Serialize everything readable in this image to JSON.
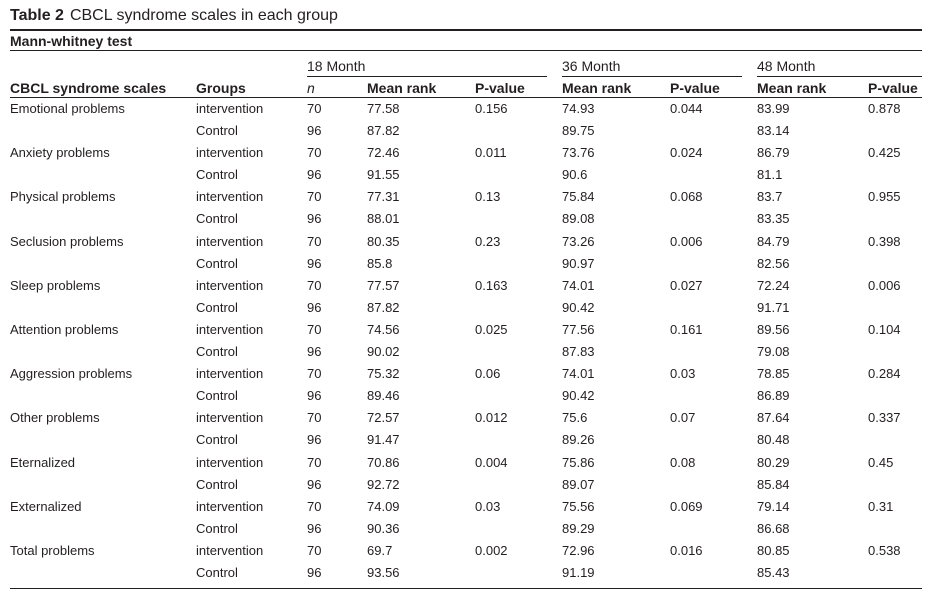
{
  "caption": {
    "label": "Table 2",
    "title": "CBCL syndrome scales in each group"
  },
  "subtitle": "Mann-whitney test",
  "group_headers": {
    "m18": "18 Month",
    "m36": "36 Month",
    "m48": "48 Month"
  },
  "columns": {
    "scale": "CBCL syndrome scales",
    "groups": "Groups",
    "n": "n",
    "mean18": "Mean rank",
    "p18": "P-value",
    "mean36": "Mean rank",
    "p36": "P-value",
    "mean48": "Mean rank",
    "p48": "P-value"
  },
  "rows": [
    {
      "scale": "Emotional problems",
      "group": "intervention",
      "n": "70",
      "m18": "77.58",
      "p18": "0.156",
      "m36": "74.93",
      "p36": "0.044",
      "m48": "83.99",
      "p48": "0.878"
    },
    {
      "scale": "",
      "group": "Control",
      "n": "96",
      "m18": "87.82",
      "p18": "",
      "m36": "89.75",
      "p36": "",
      "m48": "83.14",
      "p48": ""
    },
    {
      "scale": "Anxiety problems",
      "group": "intervention",
      "n": "70",
      "m18": "72.46",
      "p18": "0.011",
      "m36": "73.76",
      "p36": "0.024",
      "m48": "86.79",
      "p48": "0.425"
    },
    {
      "scale": "",
      "group": "Control",
      "n": "96",
      "m18": "91.55",
      "p18": "",
      "m36": "90.6",
      "p36": "",
      "m48": "81.1",
      "p48": ""
    },
    {
      "scale": "Physical problems",
      "group": "intervention",
      "n": "70",
      "m18": "77.31",
      "p18": "0.13",
      "m36": "75.84",
      "p36": "0.068",
      "m48": "83.7",
      "p48": "0.955"
    },
    {
      "scale": "",
      "group": "Control",
      "n": "96",
      "m18": "88.01",
      "p18": "",
      "m36": "89.08",
      "p36": "",
      "m48": "83.35",
      "p48": ""
    },
    {
      "scale": "Seclusion problems",
      "group": "intervention",
      "n": "70",
      "m18": "80.35",
      "p18": "0.23",
      "m36": "73.26",
      "p36": "0.006",
      "m48": "84.79",
      "p48": "0.398"
    },
    {
      "scale": "",
      "group": "Control",
      "n": "96",
      "m18": "85.8",
      "p18": "",
      "m36": "90.97",
      "p36": "",
      "m48": "82.56",
      "p48": ""
    },
    {
      "scale": "Sleep problems",
      "group": "intervention",
      "n": "70",
      "m18": "77.57",
      "p18": "0.163",
      "m36": "74.01",
      "p36": "0.027",
      "m48": "72.24",
      "p48": "0.006"
    },
    {
      "scale": "",
      "group": "Control",
      "n": "96",
      "m18": "87.82",
      "p18": "",
      "m36": "90.42",
      "p36": "",
      "m48": "91.71",
      "p48": ""
    },
    {
      "scale": "Attention problems",
      "group": "intervention",
      "n": "70",
      "m18": "74.56",
      "p18": "0.025",
      "m36": "77.56",
      "p36": "0.161",
      "m48": "89.56",
      "p48": "0.104"
    },
    {
      "scale": "",
      "group": "Control",
      "n": "96",
      "m18": "90.02",
      "p18": "",
      "m36": "87.83",
      "p36": "",
      "m48": "79.08",
      "p48": ""
    },
    {
      "scale": "Aggression problems",
      "group": "intervention",
      "n": "70",
      "m18": "75.32",
      "p18": "0.06",
      "m36": "74.01",
      "p36": "0.03",
      "m48": "78.85",
      "p48": "0.284"
    },
    {
      "scale": "",
      "group": "Control",
      "n": "96",
      "m18": "89.46",
      "p18": "",
      "m36": "90.42",
      "p36": "",
      "m48": "86.89",
      "p48": ""
    },
    {
      "scale": "Other problems",
      "group": "intervention",
      "n": "70",
      "m18": "72.57",
      "p18": "0.012",
      "m36": "75.6",
      "p36": "0.07",
      "m48": "87.64",
      "p48": "0.337"
    },
    {
      "scale": "",
      "group": "Control",
      "n": "96",
      "m18": "91.47",
      "p18": "",
      "m36": "89.26",
      "p36": "",
      "m48": "80.48",
      "p48": ""
    },
    {
      "scale": "Eternalized",
      "group": "intervention",
      "n": "70",
      "m18": "70.86",
      "p18": "0.004",
      "m36": "75.86",
      "p36": "0.08",
      "m48": "80.29",
      "p48": "0.45"
    },
    {
      "scale": "",
      "group": "Control",
      "n": "96",
      "m18": "92.72",
      "p18": "",
      "m36": "89.07",
      "p36": "",
      "m48": "85.84",
      "p48": ""
    },
    {
      "scale": "Externalized",
      "group": "intervention",
      "n": "70",
      "m18": "74.09",
      "p18": "0.03",
      "m36": "75.56",
      "p36": "0.069",
      "m48": "79.14",
      "p48": "0.31"
    },
    {
      "scale": "",
      "group": "Control",
      "n": "96",
      "m18": "90.36",
      "p18": "",
      "m36": "89.29",
      "p36": "",
      "m48": "86.68",
      "p48": ""
    },
    {
      "scale": "Total problems",
      "group": "intervention",
      "n": "70",
      "m18": "69.7",
      "p18": "0.002",
      "m36": "72.96",
      "p36": "0.016",
      "m48": "80.85",
      "p48": "0.538"
    },
    {
      "scale": "",
      "group": "Control",
      "n": "96",
      "m18": "93.56",
      "p18": "",
      "m36": "91.19",
      "p36": "",
      "m48": "85.43",
      "p48": ""
    }
  ]
}
